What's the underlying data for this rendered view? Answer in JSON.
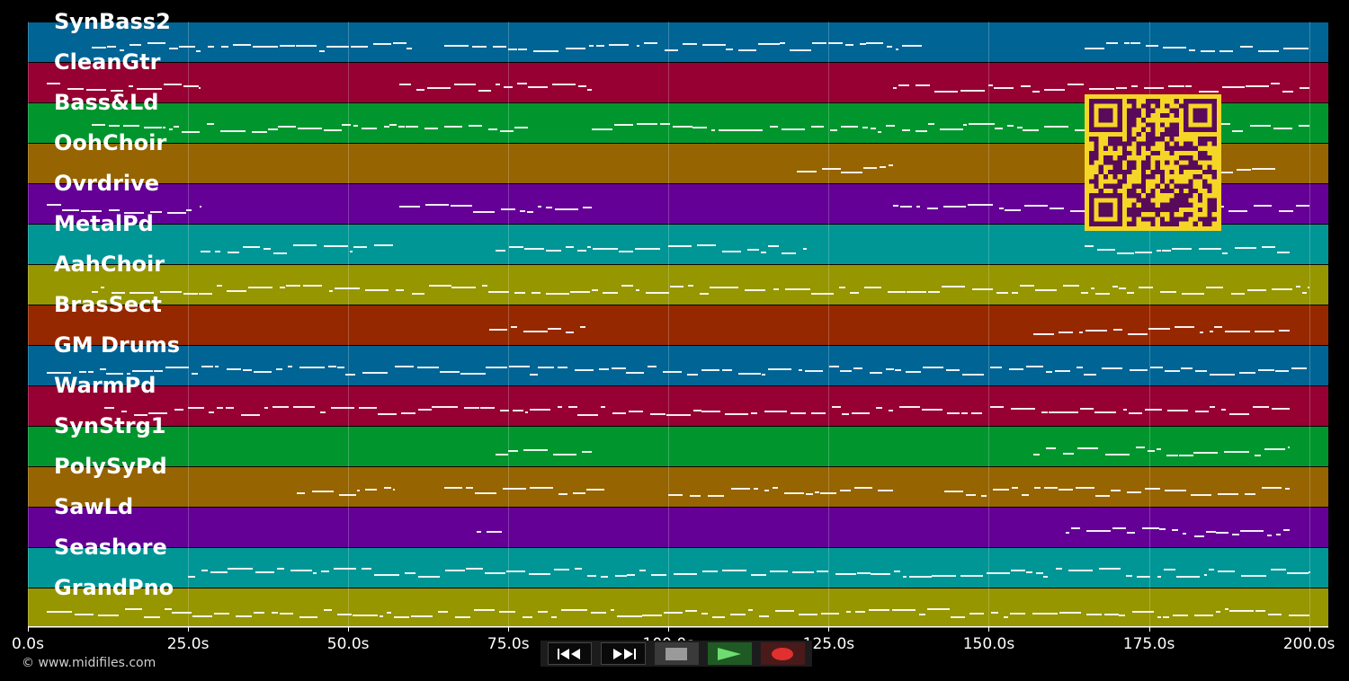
{
  "tracks": [
    {
      "name": "SynBass2",
      "color": "#006495"
    },
    {
      "name": "CleanGtr",
      "color": "#960032"
    },
    {
      "name": "Bass&Ld",
      "color": "#00962d"
    },
    {
      "name": "OohChoir",
      "color": "#966400"
    },
    {
      "name": "Ovrdrive",
      "color": "#640096"
    },
    {
      "name": "MetalPd",
      "color": "#009696"
    },
    {
      "name": "AahChoir",
      "color": "#969600"
    },
    {
      "name": "BrasSect",
      "color": "#962800"
    },
    {
      "name": "GM Drums",
      "color": "#006495"
    },
    {
      "name": "WarmPd",
      "color": "#960032"
    },
    {
      "name": "SynStrg1",
      "color": "#00962d"
    },
    {
      "name": "PolySyPd",
      "color": "#966400"
    },
    {
      "name": "SawLd",
      "color": "#640096"
    },
    {
      "name": "Seashore",
      "color": "#009696"
    },
    {
      "name": "GrandPno",
      "color": "#969600"
    }
  ],
  "time_axis": {
    "ticks": [
      {
        "value": 0,
        "label": "0.0s"
      },
      {
        "value": 25,
        "label": "25.0s"
      },
      {
        "value": 50,
        "label": "50.0s"
      },
      {
        "value": 75,
        "label": "75.0s"
      },
      {
        "value": 100,
        "label": "100.0s"
      },
      {
        "value": 125,
        "label": "125.0s"
      },
      {
        "value": 150,
        "label": "150.0s"
      },
      {
        "value": 175,
        "label": "175.0s"
      },
      {
        "value": 200,
        "label": "200.0s"
      }
    ],
    "max_seconds": 203
  },
  "copyright": "© www.midifiles.com",
  "qr_code": {
    "fg_color": "#5a0a5a",
    "bg_color": "#f5d626"
  },
  "transport": {
    "buttons": [
      {
        "name": "rewind",
        "icon": "rewind-icon"
      },
      {
        "name": "fast-forward",
        "icon": "fast-forward-icon"
      },
      {
        "name": "stop",
        "icon": "stop-icon"
      },
      {
        "name": "play",
        "icon": "play-icon"
      },
      {
        "name": "record",
        "icon": "record-icon"
      }
    ]
  }
}
